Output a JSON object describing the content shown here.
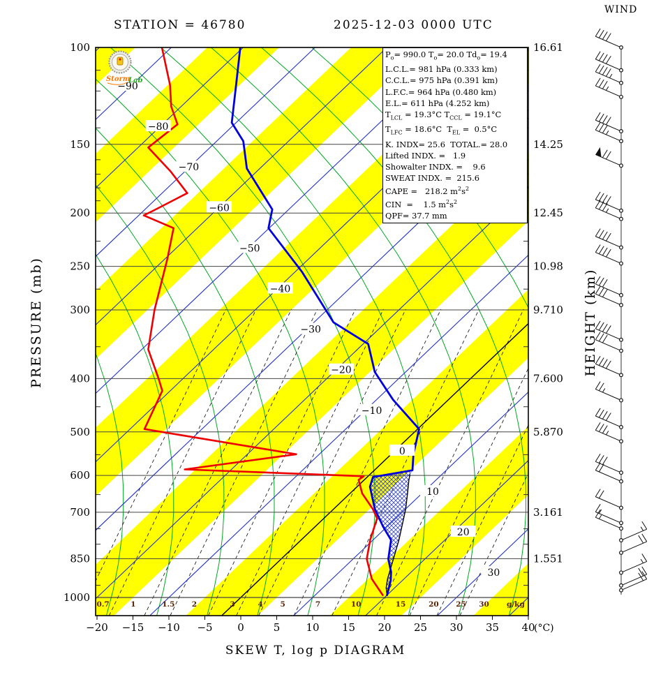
{
  "header": {
    "station": "STATION = 46780",
    "datetime": "2025-12-03 0000 UTC"
  },
  "captions": {
    "bottom": "SKEW T, log p DIAGRAM",
    "pressure_axis": "PRESSURE (mb)",
    "height_axis": "HEIGHT (km)",
    "wind": "WIND",
    "temp_unit": "(°C)",
    "mixing_unit": "g/kg"
  },
  "logo": {
    "word1": "Storm",
    "word2": "Lab"
  },
  "info_box": {
    "lines": [
      "P~o~= 990.0 T~o~= 20.0 Td~o~= 19.4",
      "L.C.L.= 981 hPa (0.333 km)",
      "C.C.L.= 975 hPa (0.391 km)",
      "L.F.C.= 964 hPa (0.480 km)",
      "E.L.= 611 hPa (4.252 km)",
      "T~LCL~ = 19.3°C T~CCL~ = 19.1°C",
      "T~LFC~ = 18.6°C  T~EL~ =  0.5°C",
      "K. INDX= 25.6  TOTAL.= 28.0",
      "Lifted INDX. =   1.9",
      "Showalter INDX. =    9.6",
      "SWEAT INDX. =  215.6",
      "CAPE =   218.2 m^2^s^2^",
      "CIN  =    1.5 m^2^s^2^",
      "QPF= 37.7 mm"
    ]
  },
  "chart_data": {
    "type": "skew-t-log-p",
    "title": "STATION = 46780",
    "subtitle": "2025-12-03 0000 UTC",
    "pressure_ticks": [
      100,
      150,
      200,
      250,
      300,
      400,
      500,
      600,
      700,
      850,
      1000
    ],
    "minor_pressure_ticks": [
      110,
      120,
      130,
      140,
      160,
      170,
      180,
      190,
      225,
      275,
      350,
      450,
      550,
      650,
      750,
      800,
      900,
      950
    ],
    "height_labels": {
      "100": "16.61",
      "150": "14.25",
      "200": "12.45",
      "250": "10.98",
      "300": "9.710",
      "400": "7.600",
      "500": "5.870",
      "700": "3.161",
      "850": "1.551"
    },
    "temp_ticks": [
      -20,
      -15,
      -10,
      -5,
      0,
      5,
      10,
      15,
      20,
      25,
      30,
      35,
      40
    ],
    "isotherm_lines_step": 10,
    "isotherm_label_values": [
      -90,
      -80,
      -70,
      -60,
      -50,
      -40,
      -30,
      -20,
      -10,
      0,
      10,
      20,
      30
    ],
    "mixing_ratio": {
      "values": [
        0.7,
        1,
        1.5,
        2,
        3,
        4,
        5,
        7,
        10,
        15,
        20,
        25,
        30
      ],
      "td_at_1000": [
        -21.3,
        -17.1,
        -12.2,
        -8.6,
        -3.3,
        0.6,
        3.7,
        8.6,
        13.9,
        20.1,
        24.7,
        28.5,
        31.7
      ]
    },
    "moist_adiabat_anchors": [
      -18,
      -11,
      -4,
      3,
      10,
      17,
      24,
      31,
      38,
      45
    ],
    "sounding": {
      "temperature": [
        [
          990,
          20.0
        ],
        [
          932,
          18.4
        ],
        [
          899,
          17.2
        ],
        [
          851,
          14.9
        ],
        [
          786,
          12.5
        ],
        [
          744,
          9.5
        ],
        [
          690,
          5.7
        ],
        [
          629,
          1.8
        ],
        [
          604,
          0.8
        ],
        [
          587,
          5.3
        ],
        [
          549,
          3.1
        ],
        [
          494,
          0.2
        ],
        [
          437,
          -7.7
        ],
        [
          389,
          -14.3
        ],
        [
          346,
          -19.3
        ],
        [
          316,
          -27.3
        ],
        [
          256,
          -39.0
        ],
        [
          213,
          -50.1
        ],
        [
          197,
          -52.3
        ],
        [
          166,
          -61.8
        ],
        [
          148,
          -66.3
        ],
        [
          137,
          -70.6
        ],
        [
          117,
          -75.5
        ],
        [
          100,
          -80.4
        ]
      ],
      "dewpoint": [
        [
          990,
          19.4
        ],
        [
          925,
          15.5
        ],
        [
          851,
          11.9
        ],
        [
          786,
          9.6
        ],
        [
          718,
          7.4
        ],
        [
          690,
          5.4
        ],
        [
          647,
          1.7
        ],
        [
          611,
          -0.8
        ],
        [
          602,
          -0.6
        ],
        [
          585,
          -26.5
        ],
        [
          549,
          -13.2
        ],
        [
          494,
          -38.0
        ],
        [
          421,
          -41.1
        ],
        [
          400,
          -43.4
        ],
        [
          354,
          -49.1
        ],
        [
          300,
          -54.0
        ],
        [
          242,
          -59.7
        ],
        [
          213,
          -63.3
        ],
        [
          202,
          -69.3
        ],
        [
          197,
          -68.5
        ],
        [
          184,
          -66.5
        ],
        [
          168,
          -72.0
        ],
        [
          152,
          -78.6
        ],
        [
          138,
          -77.9
        ],
        [
          128,
          -81.4
        ],
        [
          117,
          -84.7
        ],
        [
          100,
          -91.3
        ]
      ],
      "parcel": [
        [
          990,
          20.0
        ],
        [
          960,
          18.8
        ],
        [
          925,
          17.7
        ],
        [
          851,
          15.6
        ],
        [
          786,
          13.6
        ],
        [
          718,
          11.1
        ],
        [
          690,
          10.0
        ],
        [
          647,
          8.0
        ],
        [
          611,
          6.2
        ],
        [
          598,
          5.6
        ]
      ]
    },
    "wind_barbs": [
      {
        "p": 100,
        "dir": "nw",
        "full": 4,
        "half": 0,
        "pennant": 0
      },
      {
        "p": 110,
        "dir": "nw",
        "full": 4,
        "half": 0,
        "pennant": 0
      },
      {
        "p": 116,
        "dir": "nw",
        "full": 4,
        "half": 1,
        "pennant": 0
      },
      {
        "p": 123,
        "dir": "nw",
        "full": 3,
        "half": 1,
        "pennant": 0
      },
      {
        "p": 142,
        "dir": "nw",
        "full": 4,
        "half": 0,
        "pennant": 0
      },
      {
        "p": 148,
        "dir": "nw",
        "full": 3,
        "half": 1,
        "pennant": 0
      },
      {
        "p": 164,
        "dir": "nw",
        "full": 2,
        "half": 0,
        "pennant": 1
      },
      {
        "p": 198,
        "dir": "nw",
        "full": 4,
        "half": 0,
        "pennant": 0
      },
      {
        "p": 205,
        "dir": "nw",
        "full": 3,
        "half": 1,
        "pennant": 0
      },
      {
        "p": 231,
        "dir": "nw",
        "full": 4,
        "half": 0,
        "pennant": 0
      },
      {
        "p": 247,
        "dir": "nw",
        "full": 4,
        "half": 0,
        "pennant": 0
      },
      {
        "p": 282,
        "dir": "nw",
        "full": 3,
        "half": 0,
        "pennant": 0
      },
      {
        "p": 294,
        "dir": "nw",
        "full": 3,
        "half": 0,
        "pennant": 0
      },
      {
        "p": 340,
        "dir": "nw",
        "full": 4,
        "half": 0,
        "pennant": 0
      },
      {
        "p": 356,
        "dir": "nw",
        "full": 3,
        "half": 0,
        "pennant": 0
      },
      {
        "p": 394,
        "dir": "nw",
        "full": 4,
        "half": 0,
        "pennant": 0
      },
      {
        "p": 438,
        "dir": "nw",
        "full": 2,
        "half": 1,
        "pennant": 0
      },
      {
        "p": 490,
        "dir": "nw",
        "full": 4,
        "half": 0,
        "pennant": 0
      },
      {
        "p": 520,
        "dir": "nw",
        "full": 3,
        "half": 1,
        "pennant": 0
      },
      {
        "p": 593,
        "dir": "nw",
        "full": 3,
        "half": 0,
        "pennant": 0
      },
      {
        "p": 615,
        "dir": "nw",
        "full": 2,
        "half": 0,
        "pennant": 0
      },
      {
        "p": 687,
        "dir": "nw",
        "full": 2,
        "half": 0,
        "pennant": 0
      },
      {
        "p": 732,
        "dir": "nw",
        "full": 1,
        "half": 1,
        "pennant": 0
      },
      {
        "p": 749,
        "dir": "nw",
        "full": 1,
        "half": 1,
        "pennant": 0
      },
      {
        "p": 787,
        "dir": "se",
        "full": 1,
        "half": 1,
        "pennant": 0
      },
      {
        "p": 829,
        "dir": "se",
        "full": 2,
        "half": 0,
        "pennant": 0
      },
      {
        "p": 901,
        "dir": "se",
        "full": 1,
        "half": 1,
        "pennant": 0
      },
      {
        "p": 951,
        "dir": "se",
        "full": 2,
        "half": 0,
        "pennant": 0
      },
      {
        "p": 970,
        "dir": "se",
        "full": 2,
        "half": 0,
        "pennant": 0
      }
    ],
    "colors": {
      "band": "#ffff00",
      "isotherm": "#2233cc",
      "zero_isotherm": "#000000",
      "moist_adiabat": "#00aa22",
      "mixing_line": "#222222",
      "grid": "#444444",
      "temperature": "#0000dd",
      "dewpoint": "#ee0000",
      "parcel": "#000000",
      "hatch": "#3344cc",
      "mixing_label": "#5a2000"
    }
  }
}
